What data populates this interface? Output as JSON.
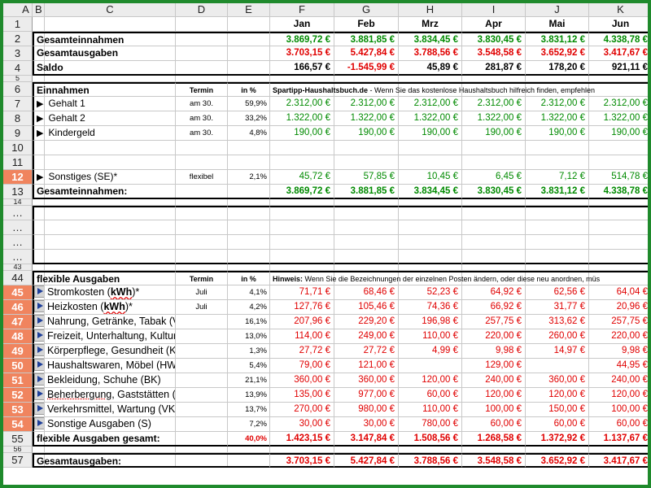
{
  "columns": [
    "A",
    "B",
    "C",
    "D",
    "E",
    "F",
    "G",
    "H",
    "I",
    "J",
    "K"
  ],
  "months": [
    "Jan",
    "Feb",
    "Mrz",
    "Apr",
    "Mai",
    "Jun"
  ],
  "row_numbers": {
    "r1": "1",
    "r2": "2",
    "r3": "3",
    "r4": "4",
    "r5": "5",
    "r6": "6",
    "r7": "7",
    "r8": "8",
    "r9": "9",
    "r10": "10",
    "r11": "11",
    "r12": "12",
    "r13": "13",
    "r14": "14",
    "d1": "…",
    "d2": "…",
    "d3": "…",
    "d4": "…",
    "r43": "43",
    "r44": "44",
    "r45": "45",
    "r46": "46",
    "r47": "47",
    "r48": "48",
    "r49": "49",
    "r50": "50",
    "r51": "51",
    "r52": "52",
    "r53": "53",
    "r54": "54",
    "r55": "55",
    "r56": "56",
    "r57": "57"
  },
  "summary": {
    "income_label": "Gesamteinnahmen",
    "income": [
      "3.869,72 €",
      "3.881,85 €",
      "3.834,45 €",
      "3.830,45 €",
      "3.831,12 €",
      "4.338,78 €"
    ],
    "expense_label": "Gesamtausgaben",
    "expense": [
      "3.703,15 €",
      "5.427,84 €",
      "3.788,56 €",
      "3.548,58 €",
      "3.652,92 €",
      "3.417,67 €"
    ],
    "saldo_label": "Saldo",
    "saldo": [
      "166,57 €",
      "-1.545,99 €",
      "45,89 €",
      "281,87 €",
      "178,20 €",
      "921,11 €"
    ]
  },
  "income_section": {
    "title": "Einnahmen",
    "termin_header": "Termin",
    "pct_header": "in %",
    "note_bold": "Spartipp-Haushaltsbuch.de",
    "note_rest": " - Wenn Sie das kostenlose Haushaltsbuch hilfreich finden, empfehlen",
    "rows": [
      {
        "label": "Gehalt 1",
        "termin": "am 30.",
        "pct": "59,9%",
        "values": [
          "2.312,00 €",
          "2.312,00 €",
          "2.312,00 €",
          "2.312,00 €",
          "2.312,00 €",
          "2.312,00 €"
        ]
      },
      {
        "label": "Gehalt 2",
        "termin": "am 30.",
        "pct": "33,2%",
        "values": [
          "1.322,00 €",
          "1.322,00 €",
          "1.322,00 €",
          "1.322,00 €",
          "1.322,00 €",
          "1.322,00 €"
        ]
      },
      {
        "label": "Kindergeld",
        "termin": "am 30.",
        "pct": "4,8%",
        "values": [
          "190,00 €",
          "190,00 €",
          "190,00 €",
          "190,00 €",
          "190,00 €",
          "190,00 €"
        ]
      }
    ],
    "other": {
      "label": "Sonstiges (SE)*",
      "termin": "flexibel",
      "pct": "2,1%",
      "values": [
        "45,72 €",
        "57,85 €",
        "10,45 €",
        "6,45 €",
        "7,12 €",
        "514,78 €"
      ]
    },
    "total_label": "Gesamteinnahmen:",
    "total": [
      "3.869,72 €",
      "3.881,85 €",
      "3.834,45 €",
      "3.830,45 €",
      "3.831,12 €",
      "4.338,78 €"
    ]
  },
  "flex_section": {
    "title": "flexible Ausgaben",
    "termin_header": "Termin",
    "pct_header": "in %",
    "note_bold": "Hinweis:",
    "note_rest": " Wenn Sie die Bezeichnungen der einzelnen Posten ändern, oder diese neu anordnen, müs",
    "rows": [
      {
        "pre": "Stromkosten (",
        "mark": "kWh",
        "post": ")*",
        "termin": "Juli",
        "pct": "4,1%",
        "values": [
          "71,71 €",
          "68,46 €",
          "52,23 €",
          "64,92 €",
          "62,56 €",
          "64,04 €"
        ]
      },
      {
        "pre": "Heizkosten (",
        "mark": "kWh",
        "post": ")*",
        "termin": "Juli",
        "pct": "4,2%",
        "values": [
          "127,76 €",
          "105,46 €",
          "74,36 €",
          "66,92 €",
          "31,77 €",
          "20,96 €"
        ]
      },
      {
        "pre": "Nahrung, Getränke, Tabak (VP)",
        "mark": "",
        "post": "",
        "termin": "",
        "pct": "16,1%",
        "values": [
          "207,96 €",
          "229,20 €",
          "196,98 €",
          "257,75 €",
          "313,62 €",
          "257,75 €"
        ]
      },
      {
        "pre": "Freizeit, Unterhaltung, Kultur (U",
        "mark": "",
        "post": "",
        "termin": "",
        "pct": "13,0%",
        "values": [
          "114,00 €",
          "249,00 €",
          "110,00 €",
          "220,00 €",
          "260,00 €",
          "220,00 €"
        ]
      },
      {
        "pre": "Körperpflege, Gesundheit (KP)",
        "mark": "",
        "post": "",
        "termin": "",
        "pct": "1,3%",
        "values": [
          "27,72 €",
          "27,72 €",
          "4,99 €",
          "9,98 €",
          "14,97 €",
          "9,98 €"
        ]
      },
      {
        "pre": "Haushaltswaren, Möbel (HW)",
        "mark": "",
        "post": "",
        "termin": "",
        "pct": "5,4%",
        "values": [
          "79,00 €",
          "121,00 €",
          "",
          "129,00 €",
          "",
          "44,95 €"
        ]
      },
      {
        "pre": "Bekleidung, Schuhe (BK)",
        "mark": "",
        "post": "",
        "termin": "",
        "pct": "21,1%",
        "values": [
          "360,00 €",
          "360,00 €",
          "120,00 €",
          "240,00 €",
          "360,00 €",
          "240,00 €"
        ]
      },
      {
        "pre": "",
        "mark": "Beherbergung",
        "post": ", Gaststätten (BG)",
        "termin": "",
        "pct": "13,9%",
        "values": [
          "135,00 €",
          "977,00 €",
          "60,00 €",
          "120,00 €",
          "120,00 €",
          "120,00 €"
        ]
      },
      {
        "pre": "Verkehrsmittel, Wartung (VK)",
        "mark": "",
        "post": "",
        "termin": "",
        "pct": "13,7%",
        "values": [
          "270,00 €",
          "980,00 €",
          "110,00 €",
          "100,00 €",
          "150,00 €",
          "100,00 €"
        ]
      },
      {
        "pre": "Sonstige Ausgaben (S)",
        "mark": "",
        "post": "",
        "termin": "",
        "pct": "7,2%",
        "values": [
          "30,00 €",
          "30,00 €",
          "780,00 €",
          "60,00 €",
          "60,00 €",
          "60,00 €"
        ]
      }
    ],
    "total_label": "flexible Ausgaben gesamt:",
    "total_pct": "40,0%",
    "total": [
      "1.423,15 €",
      "3.147,84 €",
      "1.508,56 €",
      "1.268,58 €",
      "1.372,92 €",
      "1.137,67 €"
    ]
  },
  "grand_total": {
    "label": "Gesamtausgaben:",
    "values": [
      "3.703,15 €",
      "5.427,84 €",
      "3.788,56 €",
      "3.548,58 €",
      "3.652,92 €",
      "3.417,67 €"
    ]
  },
  "colors": {
    "frame": "#1f8a2c",
    "income_green": "#008a00",
    "expense_red": "#e00000",
    "row_highlight": "#f0845e"
  },
  "icons": {
    "income_row": "play-triangle-icon",
    "expense_row": "blue-arrow-button-icon"
  }
}
